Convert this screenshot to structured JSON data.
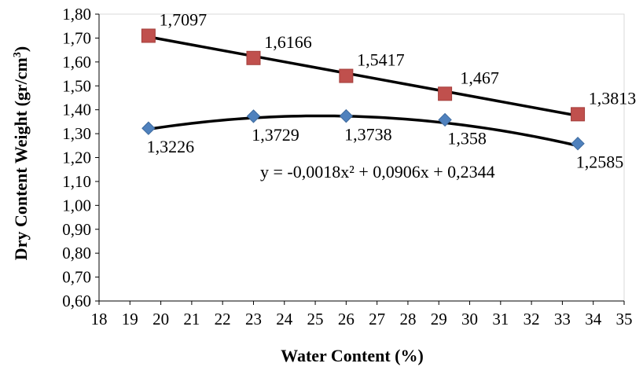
{
  "chart_data": {
    "type": "scatter",
    "title": "",
    "xlabel": "Water Content (%)",
    "ylabel_main": "Dry Content Weight (gr/cm",
    "ylabel_sup": "3",
    "ylabel_tail": ")",
    "xlim": [
      18,
      35
    ],
    "ylim": [
      0.6,
      1.8
    ],
    "x_ticks": [
      18,
      19,
      20,
      21,
      22,
      23,
      24,
      25,
      26,
      27,
      28,
      29,
      30,
      31,
      32,
      33,
      34,
      35
    ],
    "y_ticks": [
      0.6,
      0.7,
      0.8,
      0.9,
      1.0,
      1.1,
      1.2,
      1.3,
      1.4,
      1.5,
      1.6,
      1.7,
      1.8
    ],
    "y_tick_labels": [
      "0,60",
      "0,70",
      "0,80",
      "0,90",
      "1,00",
      "1,10",
      "1,20",
      "1,30",
      "1,40",
      "1,50",
      "1,60",
      "1,70",
      "1,80"
    ],
    "grid": false,
    "legend": "none",
    "series": [
      {
        "marker": "square",
        "color": "#c0504d",
        "x": [
          19.6,
          23.0,
          26.0,
          29.2,
          33.5
        ],
        "y": [
          1.7097,
          1.6166,
          1.5417,
          1.467,
          1.3813
        ],
        "labels": [
          "1,7097",
          "1,6166",
          "1,5417",
          "1,467",
          "1,3813"
        ],
        "label_pos": "above",
        "trendline": {
          "type": "linear",
          "x": [
            19.6,
            33.5
          ],
          "y": [
            1.705,
            1.375
          ]
        }
      },
      {
        "marker": "diamond",
        "color": "#4f81bd",
        "x": [
          19.6,
          23.0,
          26.0,
          29.2,
          33.5
        ],
        "y": [
          1.3226,
          1.3729,
          1.3738,
          1.358,
          1.2585
        ],
        "labels": [
          "1,3226",
          "1,3729",
          "1,3738",
          "1,358",
          "1,2585"
        ],
        "label_pos": "below",
        "trendline": {
          "type": "polynomial",
          "coeffs": [
            -0.0018,
            0.0906,
            0.2344
          ],
          "x_range": [
            19.6,
            33.5
          ]
        }
      }
    ],
    "annotations": [
      {
        "text": "y = -0,0018x² + 0,0906x + 0,2344",
        "x": 26.0,
        "y": 1.14
      }
    ],
    "trendline_color": "#000000"
  }
}
